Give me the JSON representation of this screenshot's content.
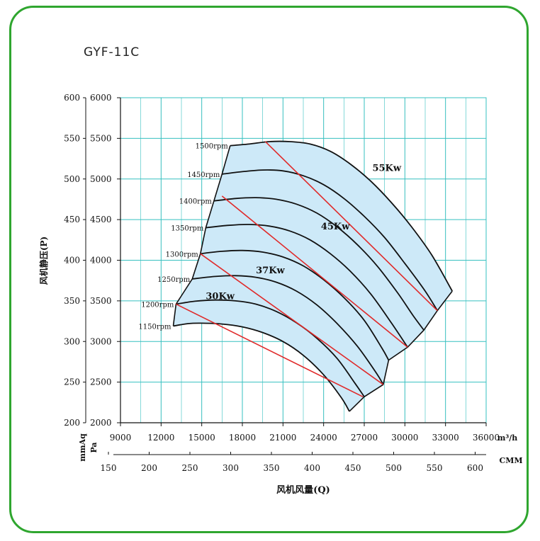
{
  "model": "GYF-11C",
  "colors": {
    "border": "#2fa62f",
    "grid": "#36c0c0",
    "curve": "#111111",
    "power_line": "#e02a2a",
    "fill": "#cde9f8",
    "power_label": "#2c8f2c"
  },
  "chart_data": {
    "type": "line",
    "title": "GYF-11C",
    "ylabel": "风机静压(P)",
    "xlabel": "风机风量(Q)",
    "y_axes": [
      {
        "unit": "mmAq",
        "ticks": [
          200,
          250,
          300,
          350,
          400,
          450,
          500,
          550,
          600
        ]
      },
      {
        "unit": "Pa",
        "ticks": [
          2000,
          2500,
          3000,
          3500,
          4000,
          4500,
          5000,
          5500,
          6000
        ]
      }
    ],
    "x_axes": [
      {
        "unit": "m³/h",
        "ticks": [
          9000,
          12000,
          15000,
          18000,
          21000,
          24000,
          27000,
          30000,
          33000,
          36000
        ]
      },
      {
        "unit": "CMM",
        "ticks": [
          150,
          200,
          250,
          300,
          350,
          400,
          450,
          500,
          550,
          600
        ]
      }
    ],
    "xlim": [
      9000,
      36000
    ],
    "ylim": [
      2000,
      6000
    ],
    "grid": true,
    "series": [
      {
        "name": "1150rpm",
        "points": [
          [
            12900,
            3190
          ],
          [
            14000,
            3220
          ],
          [
            15000,
            3225
          ],
          [
            16500,
            3215
          ],
          [
            18000,
            3180
          ],
          [
            19500,
            3110
          ],
          [
            21000,
            3000
          ],
          [
            22500,
            2830
          ],
          [
            24000,
            2590
          ],
          [
            25300,
            2310
          ],
          [
            25900,
            2140
          ]
        ]
      },
      {
        "name": "1200rpm",
        "points": [
          [
            13100,
            3460
          ],
          [
            14500,
            3495
          ],
          [
            16000,
            3510
          ],
          [
            17500,
            3500
          ],
          [
            19000,
            3460
          ],
          [
            20500,
            3370
          ],
          [
            22000,
            3230
          ],
          [
            23500,
            3040
          ],
          [
            25000,
            2790
          ],
          [
            26300,
            2490
          ],
          [
            27000,
            2320
          ]
        ]
      },
      {
        "name": "1250rpm",
        "points": [
          [
            14300,
            3770
          ],
          [
            16000,
            3800
          ],
          [
            17500,
            3810
          ],
          [
            19000,
            3790
          ],
          [
            20500,
            3730
          ],
          [
            22000,
            3620
          ],
          [
            23500,
            3450
          ],
          [
            25000,
            3220
          ],
          [
            26500,
            2940
          ],
          [
            27900,
            2610
          ],
          [
            28400,
            2470
          ]
        ]
      },
      {
        "name": "1300rpm",
        "points": [
          [
            14900,
            4080
          ],
          [
            16500,
            4110
          ],
          [
            18000,
            4120
          ],
          [
            19500,
            4100
          ],
          [
            21000,
            4040
          ],
          [
            22500,
            3930
          ],
          [
            24000,
            3760
          ],
          [
            25500,
            3540
          ],
          [
            27000,
            3260
          ],
          [
            28300,
            2920
          ],
          [
            28800,
            2770
          ]
        ]
      },
      {
        "name": "1350rpm",
        "points": [
          [
            15300,
            4400
          ],
          [
            17000,
            4430
          ],
          [
            18500,
            4440
          ],
          [
            20000,
            4420
          ],
          [
            21500,
            4360
          ],
          [
            23000,
            4250
          ],
          [
            24500,
            4080
          ],
          [
            26000,
            3860
          ],
          [
            27500,
            3580
          ],
          [
            29000,
            3230
          ],
          [
            30200,
            2930
          ]
        ]
      },
      {
        "name": "1400rpm",
        "points": [
          [
            15900,
            4730
          ],
          [
            17500,
            4760
          ],
          [
            19000,
            4770
          ],
          [
            20500,
            4750
          ],
          [
            22000,
            4690
          ],
          [
            23500,
            4580
          ],
          [
            25000,
            4410
          ],
          [
            26500,
            4190
          ],
          [
            28000,
            3920
          ],
          [
            29500,
            3590
          ],
          [
            30600,
            3320
          ],
          [
            31400,
            3140
          ]
        ]
      },
      {
        "name": "1450rpm",
        "points": [
          [
            16500,
            5060
          ],
          [
            18000,
            5090
          ],
          [
            19500,
            5110
          ],
          [
            21000,
            5100
          ],
          [
            22500,
            5040
          ],
          [
            24000,
            4930
          ],
          [
            25500,
            4760
          ],
          [
            27000,
            4540
          ],
          [
            28500,
            4280
          ],
          [
            30000,
            3960
          ],
          [
            31500,
            3620
          ],
          [
            32400,
            3380
          ]
        ]
      },
      {
        "name": "1500rpm",
        "points": [
          [
            17100,
            5410
          ],
          [
            18500,
            5430
          ],
          [
            20000,
            5460
          ],
          [
            21500,
            5460
          ],
          [
            23000,
            5430
          ],
          [
            24500,
            5340
          ],
          [
            26000,
            5180
          ],
          [
            27500,
            4970
          ],
          [
            29000,
            4710
          ],
          [
            30500,
            4410
          ],
          [
            32000,
            4060
          ],
          [
            33500,
            3620
          ]
        ]
      }
    ],
    "power_lines": [
      {
        "name": "30Kw",
        "points": [
          [
            13100,
            3460
          ],
          [
            26900,
            2320
          ]
        ]
      },
      {
        "name": "37Kw",
        "points": [
          [
            14900,
            4080
          ],
          [
            28400,
            2470
          ]
        ]
      },
      {
        "name": "45Kw",
        "points": [
          [
            16500,
            4790
          ],
          [
            30200,
            2930
          ]
        ]
      },
      {
        "name": "55Kw",
        "points": [
          [
            19700,
            5460
          ],
          [
            32400,
            3380
          ]
        ]
      }
    ],
    "annotations": [
      {
        "text": "30Kw",
        "x": 15300,
        "y": 3520
      },
      {
        "text": "37Kw",
        "x": 19000,
        "y": 3840
      },
      {
        "text": "45Kw",
        "x": 23800,
        "y": 4380
      },
      {
        "text": "55Kw",
        "x": 27600,
        "y": 5100
      }
    ]
  }
}
